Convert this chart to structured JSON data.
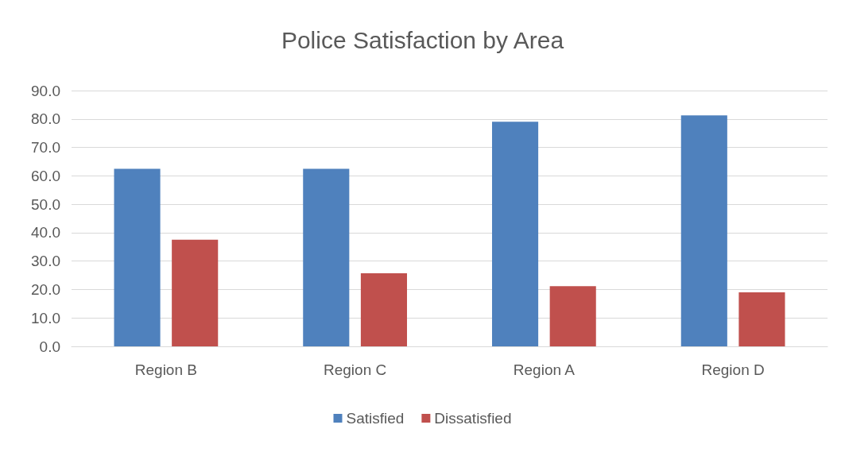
{
  "chart_data": {
    "type": "bar",
    "title": "Police Satisfaction by Area",
    "categories": [
      "Region B",
      "Region C",
      "Region A",
      "Region D"
    ],
    "series": [
      {
        "name": "Satisfied",
        "color": "#4f81bd",
        "values": [
          62.5,
          62.5,
          79.0,
          81.3
        ]
      },
      {
        "name": "Dissatisfied",
        "color": "#c0504d",
        "values": [
          37.5,
          25.7,
          21.2,
          19.0
        ]
      }
    ],
    "ylim": [
      0,
      90
    ],
    "yticks": [
      {
        "value": 0,
        "label": "0.0"
      },
      {
        "value": 10,
        "label": "10.0"
      },
      {
        "value": 20,
        "label": "20.0"
      },
      {
        "value": 30,
        "label": "30.0"
      },
      {
        "value": 40,
        "label": "40.0"
      },
      {
        "value": 50,
        "label": "50.0"
      },
      {
        "value": 60,
        "label": "60.0"
      },
      {
        "value": 70,
        "label": "70.0"
      },
      {
        "value": 80,
        "label": "80.0"
      },
      {
        "value": 90,
        "label": "90.0"
      }
    ],
    "grid": "y",
    "legend": "bottom"
  }
}
